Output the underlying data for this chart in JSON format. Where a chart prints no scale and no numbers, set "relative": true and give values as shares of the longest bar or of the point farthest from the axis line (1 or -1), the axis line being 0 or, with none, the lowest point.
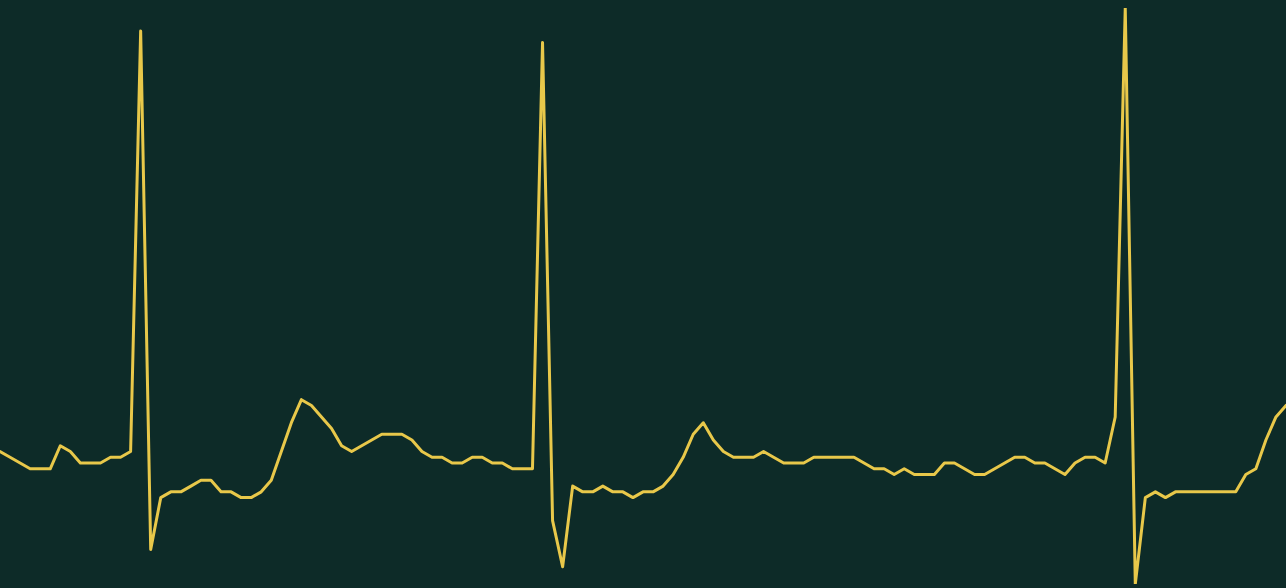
{
  "chart_data": {
    "type": "line",
    "relative": true,
    "categories": [
      null,
      null,
      null,
      null,
      null,
      null,
      null,
      null,
      null,
      null,
      null,
      null,
      null,
      null,
      null,
      null,
      null,
      null,
      null,
      null,
      null,
      null,
      null,
      null,
      null,
      null,
      null,
      null,
      null,
      null,
      null,
      null,
      null,
      null,
      null,
      null,
      null,
      null,
      null,
      null,
      null,
      null,
      null,
      null,
      null,
      null,
      null,
      null,
      null,
      null,
      null,
      null,
      null,
      null,
      null,
      null,
      null,
      null,
      null,
      null,
      null,
      null,
      null,
      null,
      null,
      null,
      null,
      null,
      null,
      null,
      null,
      null,
      null,
      null,
      null,
      null,
      null,
      null,
      null,
      null,
      null,
      null,
      null,
      null,
      null,
      null,
      null,
      null,
      null,
      null,
      null,
      null,
      null,
      null,
      null,
      null,
      null,
      null,
      null,
      null,
      null,
      null,
      null,
      null,
      null,
      null,
      null,
      null,
      null,
      null,
      null,
      null,
      null,
      null,
      null,
      null,
      null,
      null,
      null,
      null,
      null,
      null,
      null,
      null,
      null,
      null,
      null,
      null,
      null
    ],
    "series": [
      {
        "color": "#e8c84a",
        "values": [
          0.23,
          0.22,
          0.21,
          0.2,
          0.2,
          0.2,
          0.24,
          0.23,
          0.21,
          0.21,
          0.21,
          0.22,
          0.22,
          0.23,
          0.96,
          0.06,
          0.15,
          0.16,
          0.16,
          0.17,
          0.18,
          0.18,
          0.16,
          0.16,
          0.15,
          0.15,
          0.16,
          0.18,
          0.23,
          0.28,
          0.32,
          0.31,
          0.29,
          0.27,
          0.24,
          0.23,
          0.24,
          0.25,
          0.26,
          0.26,
          0.26,
          0.25,
          0.23,
          0.22,
          0.22,
          0.21,
          0.21,
          0.22,
          0.22,
          0.21,
          0.21,
          0.2,
          0.2,
          0.2,
          0.94,
          0.11,
          0.03,
          0.17,
          0.16,
          0.16,
          0.17,
          0.16,
          0.16,
          0.15,
          0.16,
          0.16,
          0.17,
          0.19,
          0.22,
          0.26,
          0.28,
          0.25,
          0.23,
          0.22,
          0.22,
          0.22,
          0.23,
          0.22,
          0.21,
          0.21,
          0.21,
          0.22,
          0.22,
          0.22,
          0.22,
          0.22,
          0.21,
          0.2,
          0.2,
          0.19,
          0.2,
          0.19,
          0.19,
          0.19,
          0.21,
          0.21,
          0.2,
          0.19,
          0.19,
          0.2,
          0.21,
          0.22,
          0.22,
          0.21,
          0.21,
          0.2,
          0.19,
          0.21,
          0.22,
          0.22,
          0.21,
          0.29,
          1,
          0,
          0.15,
          0.16,
          0.15,
          0.16,
          0.16,
          0.16,
          0.16,
          0.16,
          0.16,
          0.16,
          0.19,
          0.2,
          0.25,
          0.29,
          0.31
        ]
      }
    ],
    "legend": false,
    "marker": "none",
    "line_style": "solid"
  }
}
